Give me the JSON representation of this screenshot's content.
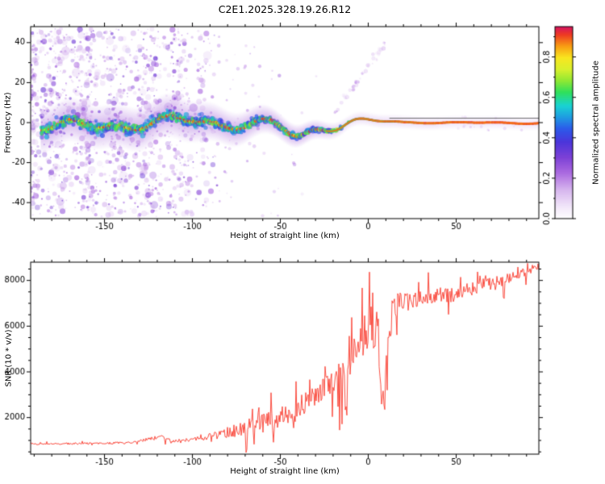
{
  "figure": {
    "title": "C2E1.2025.328.19.26.R12"
  },
  "chart_data": [
    {
      "type": "heatmap",
      "title": "",
      "xlabel": "Height of straight line (km)",
      "ylabel": "Frequency (Hz)",
      "xlim": [
        -192,
        97
      ],
      "ylim": [
        -48,
        48
      ],
      "x_major_ticks": [
        -150,
        -100,
        -50,
        0,
        50
      ],
      "x_minor_step": 10,
      "y_major_ticks": [
        -40,
        -20,
        0,
        20,
        40
      ],
      "y_minor_step": 10,
      "colorbar": {
        "label": "Normalized spectral amplitude",
        "ticks": [
          0.0,
          0.2,
          0.4,
          0.6,
          0.8
        ],
        "vmin": 0.0,
        "vmax": 0.95,
        "colormap": [
          [
            0.0,
            "#ffffff"
          ],
          [
            0.06,
            "#f3e9fa"
          ],
          [
            0.15,
            "#d7b6ee"
          ],
          [
            0.24,
            "#ab6ae0"
          ],
          [
            0.32,
            "#7d41d6"
          ],
          [
            0.4,
            "#4c35da"
          ],
          [
            0.47,
            "#2c5aea"
          ],
          [
            0.53,
            "#1f9ce2"
          ],
          [
            0.59,
            "#19d3d3"
          ],
          [
            0.66,
            "#2fe05b"
          ],
          [
            0.72,
            "#90e833"
          ],
          [
            0.78,
            "#daf02d"
          ],
          [
            0.84,
            "#f8e620"
          ],
          [
            0.9,
            "#f89d13"
          ],
          [
            0.96,
            "#ee3a23"
          ],
          [
            1.0,
            "#d6155f"
          ]
        ]
      },
      "signal": {
        "wobble": [
          [
            2.2,
            0.11,
            1.0
          ],
          [
            1.5,
            0.23,
            3.0
          ],
          [
            1.2,
            0.05,
            0.5
          ]
        ],
        "dip": {
          "amp": -6,
          "center": -40,
          "width": 9
        },
        "flatten_start": -15,
        "flatten_rate": 40,
        "left_offset": -0.8,
        "ref_line": {
          "freq": 2.2,
          "from_km": 12,
          "color": "#555555"
        }
      },
      "noise_seed": 20251128
    },
    {
      "type": "line",
      "title": "",
      "xlabel": "Height of straight line (km)",
      "ylabel": "SNR (10 * v/v)",
      "xlim": [
        -192,
        97
      ],
      "ylim": [
        400,
        8800
      ],
      "x_major_ticks": [
        -150,
        -100,
        -50,
        0,
        50
      ],
      "x_minor_step": 10,
      "y_major_ticks": [
        2000,
        4000,
        6000,
        8000
      ],
      "y_minor_step": 500,
      "line_color": "#f93b2e",
      "seed": 77,
      "envelope": [
        [
          -192,
          850,
          60
        ],
        [
          -170,
          860,
          70
        ],
        [
          -150,
          880,
          80
        ],
        [
          -135,
          900,
          90
        ],
        [
          -125,
          1050,
          140
        ],
        [
          -118,
          1150,
          170
        ],
        [
          -112,
          980,
          110
        ],
        [
          -105,
          1000,
          130
        ],
        [
          -98,
          1060,
          160
        ],
        [
          -92,
          1150,
          220
        ],
        [
          -85,
          1250,
          320
        ],
        [
          -78,
          1400,
          470
        ],
        [
          -72,
          1500,
          560
        ],
        [
          -65,
          1650,
          720
        ],
        [
          -58,
          1760,
          820
        ],
        [
          -52,
          1900,
          870
        ],
        [
          -46,
          2100,
          920
        ],
        [
          -40,
          2400,
          960
        ],
        [
          -35,
          2700,
          1000
        ],
        [
          -30,
          3000,
          960
        ],
        [
          -25,
          3200,
          1010
        ],
        [
          -20,
          3500,
          1120
        ],
        [
          -15,
          3900,
          1120
        ],
        [
          -10,
          4600,
          1420
        ],
        [
          -6,
          5200,
          1800
        ],
        [
          -2,
          5800,
          1700
        ],
        [
          2,
          6200,
          1600
        ],
        [
          5,
          5400,
          2200
        ],
        [
          8,
          2600,
          1800
        ],
        [
          10,
          3600,
          2300
        ],
        [
          13,
          6300,
          1500
        ],
        [
          17,
          6900,
          1000
        ],
        [
          22,
          7100,
          800
        ],
        [
          28,
          7200,
          650
        ],
        [
          35,
          7300,
          600
        ],
        [
          42,
          7400,
          600
        ],
        [
          50,
          7300,
          650
        ],
        [
          57,
          7600,
          550
        ],
        [
          65,
          7800,
          500
        ],
        [
          72,
          7900,
          480
        ],
        [
          80,
          8100,
          420
        ],
        [
          87,
          8300,
          380
        ],
        [
          93,
          8500,
          330
        ],
        [
          97,
          8600,
          300
        ]
      ]
    }
  ]
}
